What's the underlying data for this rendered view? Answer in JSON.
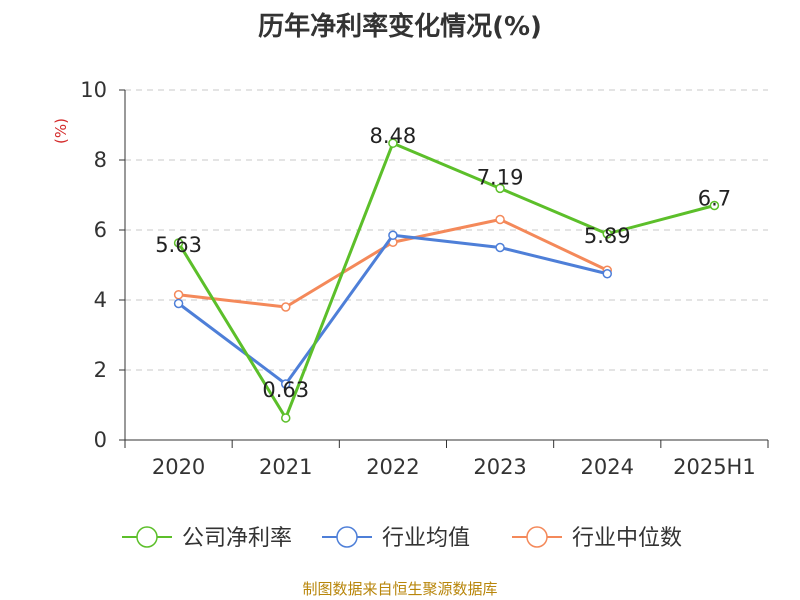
{
  "title": "历年净利率变化情况(%)",
  "source": "制图数据来自恒生聚源数据库",
  "chart_data": {
    "type": "line",
    "title": "历年净利率变化情况(%)",
    "ylabel": "(%)",
    "xlabel": "",
    "categories": [
      "2020",
      "2021",
      "2022",
      "2023",
      "2024",
      "2025H1"
    ],
    "ylim": [
      0,
      10
    ],
    "yticks": [
      0,
      2,
      4,
      6,
      8,
      10
    ],
    "grid": true,
    "legend_position": "bottom",
    "series": [
      {
        "name": "公司净利率",
        "color": "#5cbf2a",
        "values": [
          5.63,
          0.63,
          8.48,
          7.19,
          5.89,
          6.7
        ],
        "labels": [
          "5.63",
          "0.63",
          "8.48",
          "7.19",
          "5.89",
          "6.7"
        ]
      },
      {
        "name": "行业均值",
        "color": "#4e7fd8",
        "values": [
          3.9,
          1.6,
          5.85,
          5.5,
          4.75,
          null
        ]
      },
      {
        "name": "行业中位数",
        "color": "#f4895a",
        "values": [
          4.15,
          3.8,
          5.65,
          6.3,
          4.85,
          null
        ]
      }
    ]
  }
}
